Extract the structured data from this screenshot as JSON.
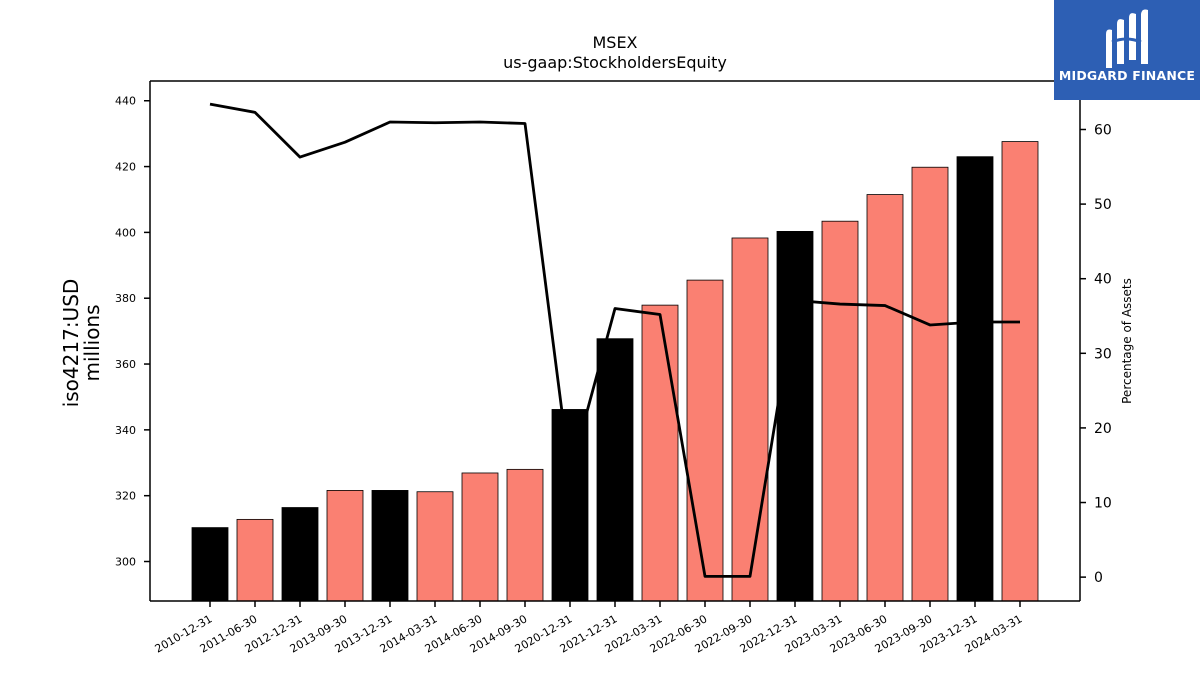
{
  "chart_data": {
    "type": "bar",
    "title": "MSEX",
    "subtitle": "us-gaap:StockholdersEquity",
    "ylabel": "iso4217:USD",
    "ylabel_unit": "millions",
    "y2label": "Percentage of Assets",
    "ylim": [
      288,
      446
    ],
    "y2lim": [
      -3.2,
      66.5
    ],
    "yticks": [
      300,
      320,
      340,
      360,
      380,
      400,
      420,
      440
    ],
    "y2ticks": [
      0,
      10,
      20,
      30,
      40,
      50,
      60
    ],
    "grid": false,
    "categories": [
      "2010-12-31",
      "2011-06-30",
      "2012-12-31",
      "2013-09-30",
      "2013-12-31",
      "2014-03-31",
      "2014-06-30",
      "2014-09-30",
      "2020-12-31",
      "2021-12-31",
      "2022-03-31",
      "2022-06-30",
      "2022-09-30",
      "2022-12-31",
      "2023-03-31",
      "2023-06-30",
      "2023-09-30",
      "2023-12-31",
      "2024-03-31"
    ],
    "series": [
      {
        "type": "bar",
        "values": [
          310.3,
          312.8,
          316.4,
          321.6,
          321.6,
          321.2,
          326.9,
          328.0,
          346.2,
          367.7,
          377.9,
          385.5,
          398.3,
          400.3,
          403.4,
          411.5,
          419.8,
          423.0,
          427.6
        ],
        "colors": [
          "#000000",
          "#fa8072",
          "#000000",
          "#fa8072",
          "#000000",
          "#fa8072",
          "#fa8072",
          "#fa8072",
          "#000000",
          "#000000",
          "#fa8072",
          "#fa8072",
          "#fa8072",
          "#000000",
          "#fa8072",
          "#fa8072",
          "#fa8072",
          "#000000",
          "#fa8072"
        ]
      },
      {
        "type": "line",
        "axis": "right",
        "values": [
          63.4,
          62.3,
          56.3,
          58.3,
          61.0,
          60.9,
          61.0,
          60.8,
          13.8,
          36.0,
          35.2,
          0.1,
          0.1,
          37.1,
          36.6,
          36.4,
          33.8,
          34.2,
          34.2
        ]
      }
    ]
  },
  "logo": {
    "text": "MIDGARD FINANCE",
    "icon": "midgard-logo-icon",
    "background": "#2d5fb4"
  }
}
